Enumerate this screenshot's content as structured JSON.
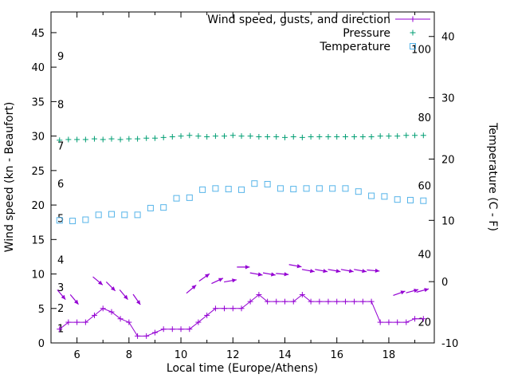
{
  "chart_data": {
    "type": "line",
    "grid": false,
    "legend_position": "top-right-inside",
    "x_axis": {
      "label": "Local time (Europe/Athens)",
      "range": [
        5,
        19.75
      ],
      "ticks": [
        6,
        8,
        10,
        12,
        14,
        16,
        18
      ]
    },
    "y_left_axis": {
      "label": "Wind speed (kn - Beaufort)",
      "range": [
        0,
        48
      ],
      "ticks": [
        0,
        5,
        10,
        15,
        20,
        25,
        30,
        35,
        40,
        45
      ]
    },
    "y_right_axis": {
      "label": "Temperature (C - F)",
      "range": [
        -10,
        44
      ],
      "ticks": [
        -10,
        0,
        10,
        20,
        30,
        40
      ]
    },
    "beaufort_labels": [
      {
        "text": "1",
        "kn": 2
      },
      {
        "text": "2",
        "kn": 5
      },
      {
        "text": "3",
        "kn": 8
      },
      {
        "text": "4",
        "kn": 12
      },
      {
        "text": "5",
        "kn": 18
      },
      {
        "text": "6",
        "kn": 23
      },
      {
        "text": "7",
        "kn": 28.5
      },
      {
        "text": "8",
        "kn": 34.5
      },
      {
        "text": "9",
        "kn": 41.5
      }
    ],
    "fahrenheit_labels": [
      {
        "text": "100",
        "c": 37.8
      },
      {
        "text": "80",
        "c": 26.7
      },
      {
        "text": "60",
        "c": 15.6
      },
      {
        "text": "40",
        "c": 4.4
      },
      {
        "text": "20",
        "c": -6.7
      }
    ],
    "series": [
      {
        "name": "Wind speed, gusts, and direction",
        "color": "#9400d3",
        "marker": "plus",
        "style": "line+points+vectors",
        "axis": "left",
        "x": [
          5.33,
          5.67,
          6,
          6.33,
          6.67,
          7,
          7.33,
          7.67,
          8,
          8.33,
          8.67,
          9,
          9.33,
          9.67,
          10,
          10.33,
          10.67,
          11,
          11.33,
          11.67,
          12,
          12.33,
          12.67,
          13,
          13.33,
          13.67,
          14,
          14.33,
          14.67,
          15,
          15.33,
          15.67,
          16,
          16.33,
          16.67,
          17,
          17.33,
          17.67,
          18,
          18.33,
          18.67,
          19,
          19.33
        ],
        "y": [
          2,
          3,
          3,
          3,
          4,
          5,
          4.5,
          3.5,
          3,
          1,
          1,
          1.5,
          2,
          2,
          2,
          2,
          3,
          4,
          5,
          5,
          5,
          5,
          6,
          7,
          6,
          6,
          6,
          6,
          7,
          6,
          6,
          6,
          6,
          6,
          6,
          6,
          6,
          3,
          3,
          3,
          3,
          3.5,
          3.5
        ],
        "arrows": [
          {
            "t": 5.4,
            "v": 7,
            "angle": 50
          },
          {
            "t": 5.9,
            "v": 6.3,
            "angle": 50
          },
          {
            "t": 6.8,
            "v": 9,
            "angle": 40
          },
          {
            "t": 7.3,
            "v": 8.2,
            "angle": 45
          },
          {
            "t": 7.8,
            "v": 7,
            "angle": 50
          },
          {
            "t": 8.3,
            "v": 6.3,
            "angle": 55
          },
          {
            "t": 10.4,
            "v": 7.8,
            "angle": -40
          },
          {
            "t": 10.9,
            "v": 9.5,
            "angle": -35
          },
          {
            "t": 11.4,
            "v": 9,
            "angle": -25
          },
          {
            "t": 11.9,
            "v": 9,
            "angle": -10
          },
          {
            "t": 12.4,
            "v": 11,
            "angle": 0
          },
          {
            "t": 12.9,
            "v": 10,
            "angle": 10
          },
          {
            "t": 13.4,
            "v": 10,
            "angle": 10
          },
          {
            "t": 13.9,
            "v": 10,
            "angle": 5
          },
          {
            "t": 14.4,
            "v": 11.2,
            "angle": 10
          },
          {
            "t": 14.9,
            "v": 10.5,
            "angle": 10
          },
          {
            "t": 15.4,
            "v": 10.5,
            "angle": 10
          },
          {
            "t": 15.9,
            "v": 10.5,
            "angle": 10
          },
          {
            "t": 16.4,
            "v": 10.5,
            "angle": 10
          },
          {
            "t": 16.9,
            "v": 10.5,
            "angle": 10
          },
          {
            "t": 17.4,
            "v": 10.5,
            "angle": 5
          },
          {
            "t": 18.4,
            "v": 7.2,
            "angle": -20
          },
          {
            "t": 18.9,
            "v": 7.5,
            "angle": -15
          },
          {
            "t": 19.3,
            "v": 7.6,
            "angle": -15
          }
        ]
      },
      {
        "name": "Pressure",
        "color": "#009e73",
        "marker": "plus",
        "style": "points",
        "axis": "left",
        "x": [
          5.33,
          5.67,
          6,
          6.33,
          6.67,
          7,
          7.33,
          7.67,
          8,
          8.33,
          8.67,
          9,
          9.33,
          9.67,
          10,
          10.33,
          10.67,
          11,
          11.33,
          11.67,
          12,
          12.33,
          12.67,
          13,
          13.33,
          13.67,
          14,
          14.33,
          14.67,
          15,
          15.33,
          15.67,
          16,
          16.33,
          16.67,
          17,
          17.33,
          17.67,
          18,
          18.33,
          18.67,
          19,
          19.33
        ],
        "y": [
          29.4,
          29.5,
          29.5,
          29.5,
          29.6,
          29.5,
          29.6,
          29.5,
          29.6,
          29.6,
          29.7,
          29.7,
          29.8,
          29.9,
          30,
          30.1,
          30,
          29.9,
          30,
          30,
          30.1,
          30,
          30,
          29.9,
          29.9,
          29.9,
          29.8,
          29.9,
          29.8,
          29.9,
          29.9,
          29.9,
          29.9,
          29.9,
          29.9,
          29.9,
          29.9,
          30,
          30,
          30,
          30.1,
          30.1,
          30.1
        ]
      },
      {
        "name": "Temperature",
        "color": "#56b4e9",
        "marker": "open-square",
        "style": "points",
        "axis": "right",
        "x": [
          5.33,
          5.83,
          6.33,
          6.83,
          7.33,
          7.83,
          8.33,
          8.83,
          9.33,
          9.83,
          10.33,
          10.83,
          11.33,
          11.83,
          12.33,
          12.83,
          13.33,
          13.83,
          14.33,
          14.83,
          15.33,
          15.83,
          16.33,
          16.83,
          17.33,
          17.83,
          18.33,
          18.83,
          19.33
        ],
        "y": [
          10,
          9.9,
          10.1,
          10.9,
          11,
          10.9,
          10.9,
          12,
          12.1,
          13.6,
          13.7,
          15,
          15.2,
          15.1,
          15,
          16,
          15.9,
          15.2,
          15.1,
          15.2,
          15.2,
          15.2,
          15.2,
          14.7,
          14,
          13.9,
          13.4,
          13.3,
          13.2
        ]
      }
    ]
  }
}
